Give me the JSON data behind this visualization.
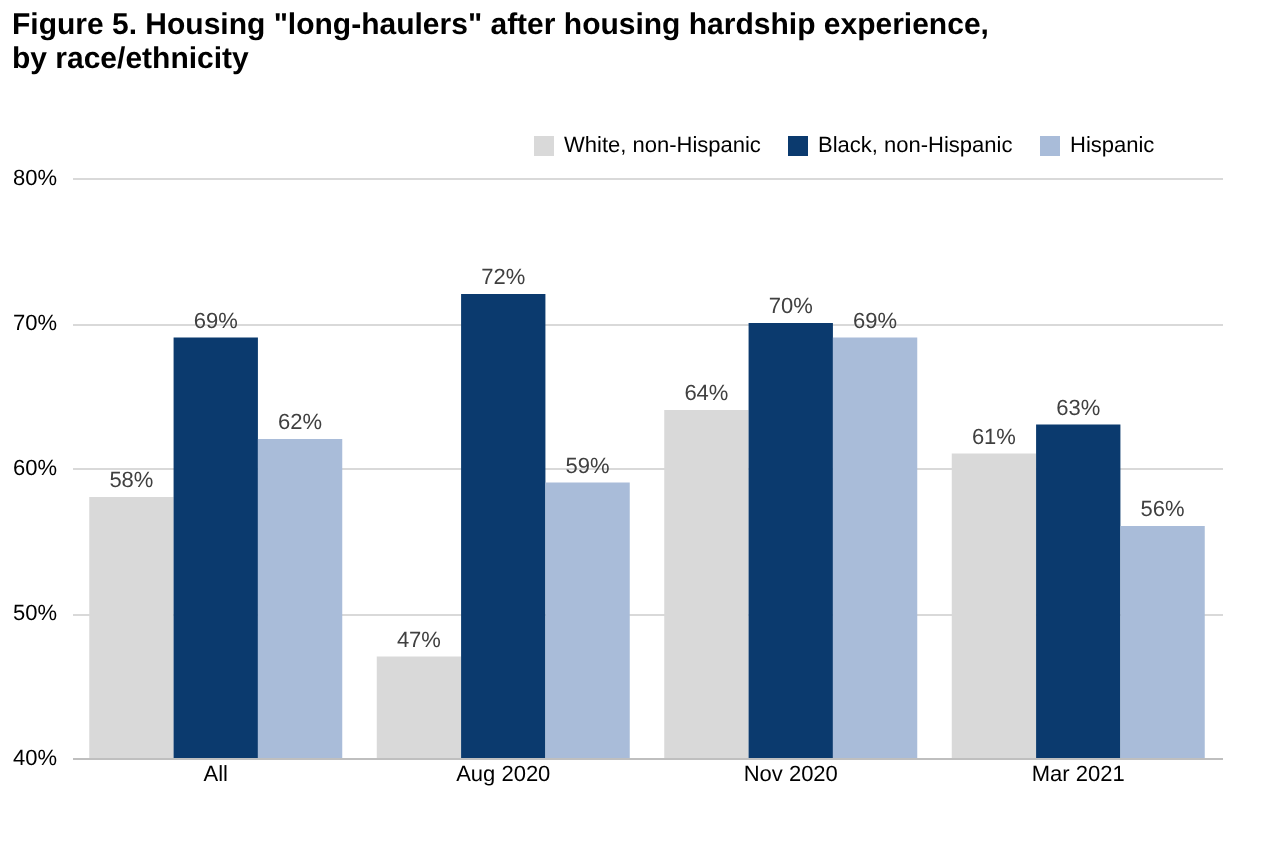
{
  "chart_data": {
    "type": "bar",
    "title": "Figure 5. Housing \"long-haulers\" after housing hardship experience, by race/ethnicity",
    "categories": [
      "All",
      "Aug 2020",
      "Nov 2020",
      "Mar 2021"
    ],
    "series": [
      {
        "name": "White, non-Hispanic",
        "color": "#d9d9d9",
        "values": [
          58,
          47,
          64,
          61
        ],
        "value_labels": [
          "58%",
          "47%",
          "64%",
          "61%"
        ]
      },
      {
        "name": "Black, non-Hispanic",
        "color": "#0b3a6e",
        "values": [
          69,
          72,
          70,
          63
        ],
        "value_labels": [
          "69%",
          "72%",
          "70%",
          "63%"
        ]
      },
      {
        "name": "Hispanic",
        "color": "#a9bcd9",
        "values": [
          62,
          59,
          69,
          56
        ],
        "value_labels": [
          "62%",
          "59%",
          "69%",
          "56%"
        ]
      }
    ],
    "ylim": [
      40,
      80
    ],
    "yticks": [
      {
        "value": 40,
        "label": "40%"
      },
      {
        "value": 50,
        "label": "50%"
      },
      {
        "value": 60,
        "label": "60%"
      },
      {
        "value": 70,
        "label": "70%"
      },
      {
        "value": 80,
        "label": "80%"
      }
    ],
    "grid": "y",
    "legend": "top right"
  }
}
